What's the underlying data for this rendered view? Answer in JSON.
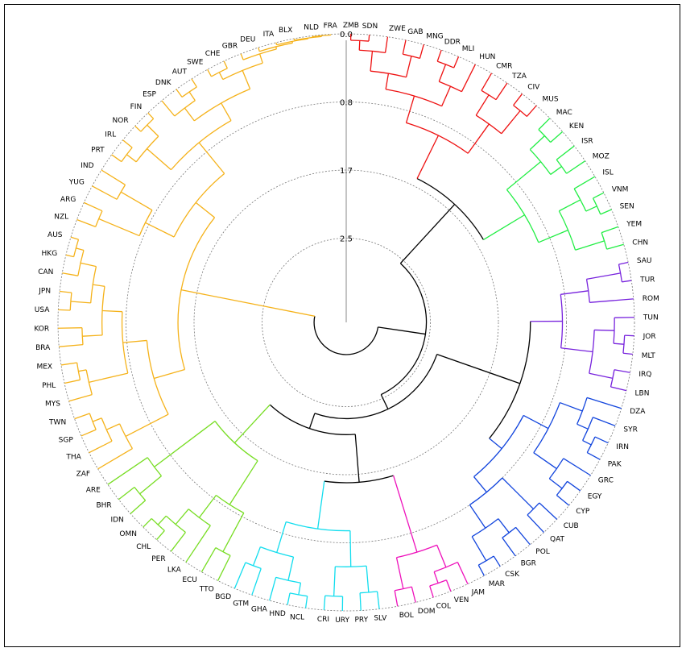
{
  "scale": {
    "ticks": [
      {
        "label": "0.0",
        "height": 0.0
      },
      {
        "label": "0.8",
        "height": 0.85
      },
      {
        "label": "1.7",
        "height": 1.7
      },
      {
        "label": "2.5",
        "height": 2.55
      }
    ],
    "max_height": 3.4
  },
  "colors": {
    "red": "#ee1111",
    "green": "#22ee44",
    "purple": "#7722dd",
    "blue": "#1144dd",
    "magenta": "#ee11bb",
    "cyan": "#11ddee",
    "lime": "#77dd22",
    "orange": "#f5b21a",
    "root": "#000000"
  },
  "leaves": [
    "ZMB",
    "SDN",
    "ZWE",
    "GAB",
    "MNG",
    "DDR",
    "MLI",
    "HUN",
    "CMR",
    "TZA",
    "CIV",
    "MUS",
    "MAC",
    "KEN",
    "ISR",
    "MOZ",
    "ISL",
    "VNM",
    "SEN",
    "YEM",
    "CHN",
    "SAU",
    "TUR",
    "ROM",
    "TUN",
    "JOR",
    "MLT",
    "IRQ",
    "LBN",
    "DZA",
    "SYR",
    "IRN",
    "PAK",
    "GRC",
    "EGY",
    "CYP",
    "CUB",
    "QAT",
    "POL",
    "BGR",
    "CSK",
    "MAR",
    "JAM",
    "VEN",
    "COL",
    "DOM",
    "BOL",
    "SLV",
    "PRY",
    "URY",
    "CRI",
    "NCL",
    "HND",
    "GHA",
    "GTM",
    "BGD",
    "TTO",
    "ECU",
    "LKA",
    "PER",
    "CHL",
    "OMN",
    "IDN",
    "BHR",
    "ARE",
    "ZAF",
    "THA",
    "SGP",
    "TWN",
    "MYS",
    "PHL",
    "MEX",
    "BRA",
    "KOR",
    "USA",
    "JPN",
    "CAN",
    "HKG",
    "AUS",
    "NZL",
    "ARG",
    "YUG",
    "IND",
    "PRT",
    "IRL",
    "NOR",
    "FIN",
    "ESP",
    "DNK",
    "AUT",
    "SWE",
    "CHE",
    "GBR",
    "DEU",
    "ITA",
    "BLX",
    "NLD",
    "FRA"
  ],
  "tree": {
    "h": 3.2,
    "c": [
      {
        "h": 2.6,
        "c": [
          {
            "h": 1.6,
            "c": [
              {
                "h": 1.0,
                "color": "red",
                "c": [
                  {
                    "h": 0.65,
                    "c": [
                      {
                        "h": 0.45,
                        "c": [
                          {
                            "h": 0.2,
                            "c": [
                              {
                                "h": 0.08,
                                "c": [
                                  "ZMB",
                                  "SDN"
                                ]
                              },
                              "ZWE"
                            ]
                          },
                          {
                            "h": 0.18,
                            "c": [
                              "GAB",
                              "MNG"
                            ]
                          }
                        ]
                      },
                      {
                        "h": 0.38,
                        "c": [
                          {
                            "h": 0.15,
                            "c": [
                              "DDR",
                              "MLI"
                            ]
                          },
                          "HUN"
                        ]
                      }
                    ]
                  },
                  {
                    "h": 0.55,
                    "c": [
                      {
                        "h": 0.25,
                        "c": [
                          "CMR",
                          "TZA"
                        ]
                      },
                      {
                        "h": 0.18,
                        "c": [
                          "CIV",
                          "MUS"
                        ]
                      }
                    ]
                  }
                ]
              },
              {
                "h": 1.0,
                "color": "green",
                "c": [
                  {
                    "h": 0.45,
                    "c": [
                      {
                        "h": 0.2,
                        "c": [
                          "MAC",
                          "KEN"
                        ]
                      },
                      {
                        "h": 0.28,
                        "c": [
                          "ISR",
                          "MOZ"
                        ]
                      }
                    ]
                  },
                  {
                    "h": 0.6,
                    "c": [
                      {
                        "h": 0.3,
                        "c": [
                          "ISL",
                          {
                            "h": 0.15,
                            "c": [
                              "VNM",
                              "SEN"
                            ]
                          }
                        ]
                      },
                      {
                        "h": 0.22,
                        "c": [
                          "YEM",
                          "CHN"
                        ]
                      }
                    ]
                  }
                ]
              }
            ]
          },
          {
            "h": 2.4,
            "c": [
              {
                "h": 1.3,
                "c": [
                  {
                    "h": 0.9,
                    "color": "purple",
                    "c": [
                      {
                        "h": 0.55,
                        "c": [
                          {
                            "h": 0.12,
                            "c": [
                              "SAU",
                              "TUR"
                            ]
                          },
                          "ROM"
                        ]
                      },
                      {
                        "h": 0.5,
                        "c": [
                          {
                            "h": 0.25,
                            "c": [
                              "TUN",
                              {
                                "h": 0.12,
                                "c": [
                                  "JOR",
                                  "MLT"
                                ]
                              }
                            ]
                          },
                          {
                            "h": 0.2,
                            "c": [
                              "IRQ",
                              "LBN"
                            ]
                          }
                        ]
                      }
                    ]
                  },
                  {
                    "h": 1.1,
                    "color": "blue",
                    "c": [
                      {
                        "h": 0.75,
                        "c": [
                          {
                            "h": 0.45,
                            "c": [
                              "DZA",
                              {
                                "h": 0.3,
                                "c": [
                                  "SYR",
                                  {
                                    "h": 0.18,
                                    "c": [
                                      "IRN",
                                      "PAK"
                                    ]
                                  }
                                ]
                              }
                            ]
                          },
                          {
                            "h": 0.4,
                            "c": [
                              "GRC",
                              {
                                "h": 0.2,
                                "c": [
                                  "EGY",
                                  "CYP"
                                ]
                              }
                            ]
                          }
                        ]
                      },
                      {
                        "h": 0.85,
                        "c": [
                          {
                            "h": 0.3,
                            "c": [
                              "CUB",
                              "QAT"
                            ]
                          },
                          {
                            "h": 0.5,
                            "c": [
                              {
                                "h": 0.28,
                                "c": [
                                  "POL",
                                  "BGR"
                                ]
                              },
                              {
                                "h": 0.15,
                                "c": [
                                  "CSK",
                                  "MAR"
                                ]
                              }
                            ]
                          }
                        ]
                      }
                    ]
                  }
                ]
              },
              {
                "h": 2.2,
                "c": [
                  {
                    "h": 1.6,
                    "c": [
                      {
                        "h": 0.6,
                        "color": "magenta",
                        "c": [
                          {
                            "h": 0.3,
                            "c": [
                              "JAM",
                              {
                                "h": 0.15,
                                "c": [
                                  "VEN",
                                  "COL"
                                ]
                              }
                            ]
                          },
                          {
                            "h": 0.2,
                            "c": [
                              "DOM",
                              "BOL"
                            ]
                          }
                        ]
                      },
                      {
                        "h": 1.0,
                        "color": "cyan",
                        "c": [
                          {
                            "h": 0.55,
                            "c": [
                              {
                                "h": 0.22,
                                "c": [
                                  "SLV",
                                  "PRY"
                                ]
                              },
                              {
                                "h": 0.18,
                                "c": [
                                  "URY",
                                  "CRI"
                                ]
                              }
                            ]
                          },
                          {
                            "h": 0.6,
                            "c": [
                              {
                                "h": 0.3,
                                "c": [
                                  {
                                    "h": 0.15,
                                    "c": [
                                      "NCL",
                                      "HND"
                                    ]
                                  },
                                  "GHA"
                                ]
                              },
                              {
                                "h": 0.35,
                                "c": [
                                  "GTM",
                                  "BGD"
                                ]
                              }
                            ]
                          }
                        ]
                      }
                    ]
                  },
                  {
                    "h": 1.55,
                    "color": "lime",
                    "c": [
                      {
                        "h": 0.9,
                        "c": [
                          {
                            "h": 0.35,
                            "c": [
                              "TTO",
                              "ECU"
                            ]
                          },
                          {
                            "h": 0.55,
                            "c": [
                              "LKA",
                              {
                                "h": 0.3,
                                "c": [
                                  "PER",
                                  {
                                    "h": 0.15,
                                    "c": [
                                      "CHL",
                                      "OMN"
                                    ]
                                  }
                                ]
                              }
                            ]
                          }
                        ]
                      },
                      {
                        "h": 0.6,
                        "c": [
                          {
                            "h": 0.25,
                            "c": [
                              "IDN",
                              "BHR"
                            ]
                          },
                          "ARE"
                        ]
                      }
                    ]
                  }
                ]
              }
            ]
          }
        ]
      },
      {
        "h": 1.5,
        "color": "orange",
        "c": [
          {
            "h": 1.1,
            "c": [
              {
                "h": 0.5,
                "c": [
                  "ZAF",
                  {
                    "h": 0.32,
                    "c": [
                      "THA",
                      {
                        "h": 0.2,
                        "c": [
                          "SGP",
                          "TWN"
                        ]
                      }
                    ]
                  }
                ]
              },
              {
                "h": 0.8,
                "c": [
                  {
                    "h": 0.3,
                    "c": [
                      "MYS",
                      {
                        "h": 0.2,
                        "c": [
                          "PHL",
                          "MEX"
                        ]
                      }
                    ]
                  },
                  {
                    "h": 0.55,
                    "c": [
                      {
                        "h": 0.3,
                        "c": [
                          "BRA",
                          "KOR"
                        ]
                      },
                      {
                        "h": 0.4,
                        "c": [
                          {
                            "h": 0.15,
                            "c": [
                              "USA",
                              "JPN"
                            ]
                          },
                          {
                            "h": 0.2,
                            "c": [
                              "CAN",
                              {
                                "h": 0.1,
                                "c": [
                                  "HKG",
                                  "AUS"
                                ]
                              }
                            ]
                          }
                        ]
                      }
                    ]
                  }
                ]
              }
            ]
          },
          {
            "h": 1.2,
            "c": [
              {
                "h": 0.8,
                "c": [
                  {
                    "h": 0.25,
                    "c": [
                      "NZL",
                      "ARG"
                    ]
                  },
                  {
                    "h": 0.35,
                    "c": [
                      "YUG",
                      "IND"
                    ]
                  }
                ]
              },
              {
                "h": 0.7,
                "c": [
                  {
                    "h": 0.3,
                    "c": [
                      {
                        "h": 0.15,
                        "c": [
                          "PRT",
                          "IRL"
                        ]
                      },
                      {
                        "h": 0.1,
                        "c": [
                          "NOR",
                          "FIN"
                        ]
                      }
                    ]
                  },
                  {
                    "h": 0.45,
                    "c": [
                      {
                        "h": 0.25,
                        "c": [
                          "ESP",
                          {
                            "h": 0.12,
                            "c": [
                              "DNK",
                              "AUT"
                            ]
                          }
                        ]
                      },
                      {
                        "h": 0.2,
                        "c": [
                          {
                            "h": 0.1,
                            "c": [
                              "SWE",
                              "CHE"
                            ]
                          },
                          {
                            "h": 0.08,
                            "c": [
                              "GBR",
                              {
                                "h": 0.05,
                                "c": [
                                  "DEU",
                                  {
                                    "h": 0.03,
                                    "c": [
                                      "ITA",
                                      {
                                        "h": 0.02,
                                        "c": [
                                          "BLX",
                                          {
                                            "h": 0.01,
                                            "c": [
                                              "NLD",
                                              "FRA"
                                            ]
                                          }
                                        ]
                                      }
                                    ]
                                  }
                                ]
                              }
                            ]
                          }
                        ]
                      }
                    ]
                  }
                ]
              }
            ]
          }
        ]
      }
    ]
  }
}
